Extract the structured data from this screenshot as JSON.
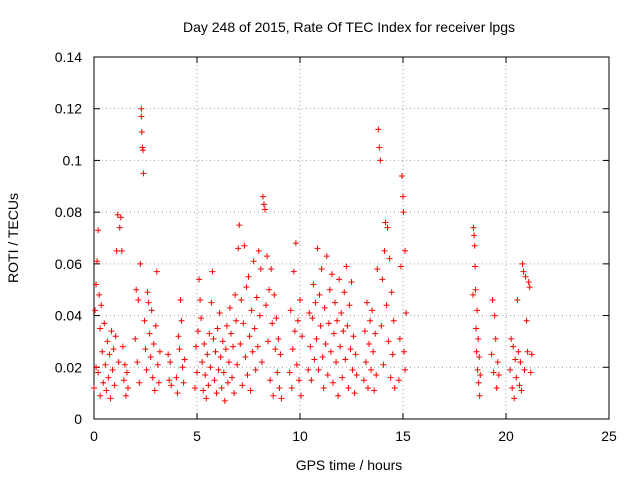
{
  "chart_data": {
    "type": "scatter",
    "title": "Day 248 of 2015, Rate Of TEC Index for receiver lpgs",
    "xlabel": "GPS time / hours",
    "ylabel": "ROTI / TECUs",
    "xlim": [
      0,
      25
    ],
    "ylim": [
      0,
      0.14
    ],
    "xticks": [
      0,
      5,
      10,
      15,
      20,
      25
    ],
    "xtick_labels": [
      "0",
      "5",
      "10",
      "15",
      "20",
      "25"
    ],
    "yticks": [
      0,
      0.02,
      0.04,
      0.06,
      0.08,
      0.1,
      0.12,
      0.14
    ],
    "ytick_labels": [
      "0",
      "0.02",
      "0.04",
      "0.06",
      "0.08",
      "0.1",
      "0.12",
      "0.14"
    ],
    "grid": true,
    "marker": "+",
    "series_color": "#ff0000",
    "series": [
      {
        "name": "ROTI",
        "points": [
          [
            0.0,
            0.012
          ],
          [
            0.05,
            0.042
          ],
          [
            0.1,
            0.02
          ],
          [
            0.1,
            0.052
          ],
          [
            0.15,
            0.061
          ],
          [
            0.2,
            0.018
          ],
          [
            0.2,
            0.073
          ],
          [
            0.25,
            0.048
          ],
          [
            0.3,
            0.035
          ],
          [
            0.3,
            0.009
          ],
          [
            0.35,
            0.044
          ],
          [
            0.4,
            0.026
          ],
          [
            0.45,
            0.014
          ],
          [
            0.5,
            0.037
          ],
          [
            0.55,
            0.021
          ],
          [
            0.6,
            0.011
          ],
          [
            0.65,
            0.03
          ],
          [
            0.7,
            0.016
          ],
          [
            0.75,
            0.025
          ],
          [
            0.8,
            0.008
          ],
          [
            0.85,
            0.034
          ],
          [
            0.9,
            0.019
          ],
          [
            0.95,
            0.027
          ],
          [
            1.0,
            0.013
          ],
          [
            1.05,
            0.032
          ],
          [
            1.1,
            0.065
          ],
          [
            1.15,
            0.079
          ],
          [
            1.2,
            0.022
          ],
          [
            1.25,
            0.074
          ],
          [
            1.3,
            0.078
          ],
          [
            1.35,
            0.065
          ],
          [
            1.4,
            0.028
          ],
          [
            1.45,
            0.015
          ],
          [
            1.5,
            0.021
          ],
          [
            1.55,
            0.009
          ],
          [
            1.6,
            0.018
          ],
          [
            1.65,
            0.012
          ],
          [
            2.0,
            0.031
          ],
          [
            2.05,
            0.05
          ],
          [
            2.1,
            0.022
          ],
          [
            2.15,
            0.046
          ],
          [
            2.2,
            0.014
          ],
          [
            2.25,
            0.06
          ],
          [
            2.3,
            0.12
          ],
          [
            2.3,
            0.117
          ],
          [
            2.32,
            0.111
          ],
          [
            2.35,
            0.105
          ],
          [
            2.38,
            0.104
          ],
          [
            2.4,
            0.095
          ],
          [
            2.45,
            0.038
          ],
          [
            2.5,
            0.027
          ],
          [
            2.55,
            0.019
          ],
          [
            2.6,
            0.049
          ],
          [
            2.65,
            0.045
          ],
          [
            2.7,
            0.033
          ],
          [
            2.75,
            0.024
          ],
          [
            2.8,
            0.042
          ],
          [
            2.85,
            0.016
          ],
          [
            2.9,
            0.029
          ],
          [
            2.95,
            0.011
          ],
          [
            3.0,
            0.036
          ],
          [
            3.05,
            0.057
          ],
          [
            3.1,
            0.021
          ],
          [
            3.15,
            0.014
          ],
          [
            3.2,
            0.026
          ],
          [
            3.6,
            0.025
          ],
          [
            3.65,
            0.015
          ],
          [
            3.7,
            0.022
          ],
          [
            3.75,
            0.013
          ],
          [
            4.0,
            0.016
          ],
          [
            4.05,
            0.01
          ],
          [
            4.1,
            0.032
          ],
          [
            4.15,
            0.027
          ],
          [
            4.2,
            0.046
          ],
          [
            4.25,
            0.038
          ],
          [
            4.3,
            0.02
          ],
          [
            4.35,
            0.014
          ],
          [
            4.4,
            0.023
          ],
          [
            4.9,
            0.012
          ],
          [
            4.95,
            0.028
          ],
          [
            5.0,
            0.018
          ],
          [
            5.05,
            0.034
          ],
          [
            5.1,
            0.054
          ],
          [
            5.15,
            0.046
          ],
          [
            5.2,
            0.039
          ],
          [
            5.25,
            0.022
          ],
          [
            5.3,
            0.011
          ],
          [
            5.35,
            0.029
          ],
          [
            5.4,
            0.017
          ],
          [
            5.45,
            0.008
          ],
          [
            5.5,
            0.025
          ],
          [
            5.55,
            0.013
          ],
          [
            5.6,
            0.033
          ],
          [
            5.65,
            0.02
          ],
          [
            5.7,
            0.045
          ],
          [
            5.75,
            0.057
          ],
          [
            5.8,
            0.031
          ],
          [
            5.85,
            0.015
          ],
          [
            5.9,
            0.026
          ],
          [
            5.95,
            0.01
          ],
          [
            6.0,
            0.035
          ],
          [
            6.05,
            0.019
          ],
          [
            6.1,
            0.041
          ],
          [
            6.15,
            0.024
          ],
          [
            6.2,
            0.012
          ],
          [
            6.25,
            0.03
          ],
          [
            6.3,
            0.018
          ],
          [
            6.35,
            0.007
          ],
          [
            6.4,
            0.027
          ],
          [
            6.45,
            0.036
          ],
          [
            6.5,
            0.014
          ],
          [
            6.55,
            0.022
          ],
          [
            6.6,
            0.043
          ],
          [
            6.65,
            0.033
          ],
          [
            6.7,
            0.016
          ],
          [
            6.75,
            0.028
          ],
          [
            6.8,
            0.01
          ],
          [
            6.85,
            0.048
          ],
          [
            6.9,
            0.038
          ],
          [
            6.95,
            0.021
          ],
          [
            7.0,
            0.066
          ],
          [
            7.05,
            0.075
          ],
          [
            7.1,
            0.029
          ],
          [
            7.15,
            0.046
          ],
          [
            7.2,
            0.013
          ],
          [
            7.25,
            0.037
          ],
          [
            7.3,
            0.067
          ],
          [
            7.35,
            0.024
          ],
          [
            7.4,
            0.051
          ],
          [
            7.45,
            0.017
          ],
          [
            7.5,
            0.055
          ],
          [
            7.55,
            0.032
          ],
          [
            7.6,
            0.011
          ],
          [
            7.65,
            0.042
          ],
          [
            7.7,
            0.026
          ],
          [
            7.75,
            0.061
          ],
          [
            7.8,
            0.035
          ],
          [
            7.85,
            0.019
          ],
          [
            7.9,
            0.047
          ],
          [
            7.95,
            0.028
          ],
          [
            8.0,
            0.065
          ],
          [
            8.05,
            0.04
          ],
          [
            8.1,
            0.058
          ],
          [
            8.15,
            0.022
          ],
          [
            8.2,
            0.086
          ],
          [
            8.25,
            0.083
          ],
          [
            8.3,
            0.081
          ],
          [
            8.35,
            0.044
          ],
          [
            8.4,
            0.063
          ],
          [
            8.45,
            0.03
          ],
          [
            8.5,
            0.05
          ],
          [
            8.55,
            0.015
          ],
          [
            8.6,
            0.058
          ],
          [
            8.65,
            0.037
          ],
          [
            8.7,
            0.009
          ],
          [
            8.75,
            0.048
          ],
          [
            8.8,
            0.027
          ],
          [
            8.85,
            0.039
          ],
          [
            8.9,
            0.018
          ],
          [
            8.95,
            0.031
          ],
          [
            9.0,
            0.012
          ],
          [
            9.05,
            0.025
          ],
          [
            9.1,
            0.008
          ],
          [
            9.5,
            0.018
          ],
          [
            9.55,
            0.042
          ],
          [
            9.6,
            0.012
          ],
          [
            9.65,
            0.027
          ],
          [
            9.7,
            0.057
          ],
          [
            9.75,
            0.034
          ],
          [
            9.8,
            0.068
          ],
          [
            9.85,
            0.021
          ],
          [
            9.9,
            0.038
          ],
          [
            9.95,
            0.015
          ],
          [
            10.0,
            0.046
          ],
          [
            10.05,
            0.009
          ],
          [
            10.1,
            0.032
          ],
          [
            10.4,
            0.019
          ],
          [
            10.45,
            0.041
          ],
          [
            10.5,
            0.028
          ],
          [
            10.55,
            0.015
          ],
          [
            10.6,
            0.039
          ],
          [
            10.65,
            0.052
          ],
          [
            10.7,
            0.023
          ],
          [
            10.75,
            0.045
          ],
          [
            10.8,
            0.031
          ],
          [
            10.85,
            0.066
          ],
          [
            10.9,
            0.019
          ],
          [
            10.95,
            0.048
          ],
          [
            11.0,
            0.036
          ],
          [
            11.05,
            0.058
          ],
          [
            11.1,
            0.024
          ],
          [
            11.15,
            0.012
          ],
          [
            11.2,
            0.043
          ],
          [
            11.25,
            0.029
          ],
          [
            11.3,
            0.063
          ],
          [
            11.35,
            0.017
          ],
          [
            11.4,
            0.037
          ],
          [
            11.45,
            0.05
          ],
          [
            11.5,
            0.026
          ],
          [
            11.55,
            0.056
          ],
          [
            11.6,
            0.014
          ],
          [
            11.65,
            0.033
          ],
          [
            11.7,
            0.045
          ],
          [
            11.75,
            0.022
          ],
          [
            11.8,
            0.038
          ],
          [
            11.85,
            0.009
          ],
          [
            11.9,
            0.054
          ],
          [
            11.95,
            0.028
          ],
          [
            12.0,
            0.041
          ],
          [
            12.05,
            0.016
          ],
          [
            12.1,
            0.034
          ],
          [
            12.15,
            0.049
          ],
          [
            12.2,
            0.023
          ],
          [
            12.25,
            0.059
          ],
          [
            12.3,
            0.036
          ],
          [
            12.35,
            0.012
          ],
          [
            12.4,
            0.044
          ],
          [
            12.45,
            0.027
          ],
          [
            12.5,
            0.053
          ],
          [
            12.55,
            0.019
          ],
          [
            12.6,
            0.032
          ],
          [
            12.65,
            0.01
          ],
          [
            12.7,
            0.025
          ],
          [
            12.75,
            0.017
          ],
          [
            13.1,
            0.015
          ],
          [
            13.15,
            0.034
          ],
          [
            13.2,
            0.022
          ],
          [
            13.25,
            0.045
          ],
          [
            13.3,
            0.012
          ],
          [
            13.35,
            0.029
          ],
          [
            13.4,
            0.038
          ],
          [
            13.45,
            0.019
          ],
          [
            13.5,
            0.042
          ],
          [
            13.55,
            0.026
          ],
          [
            13.6,
            0.011
          ],
          [
            13.65,
            0.033
          ],
          [
            13.7,
            0.017
          ],
          [
            13.75,
            0.058
          ],
          [
            13.8,
            0.112
          ],
          [
            13.85,
            0.105
          ],
          [
            13.9,
            0.1
          ],
          [
            13.95,
            0.036
          ],
          [
            14.0,
            0.054
          ],
          [
            14.05,
            0.021
          ],
          [
            14.1,
            0.065
          ],
          [
            14.15,
            0.076
          ],
          [
            14.2,
            0.044
          ],
          [
            14.25,
            0.074
          ],
          [
            14.3,
            0.03
          ],
          [
            14.35,
            0.062
          ],
          [
            14.4,
            0.016
          ],
          [
            14.45,
            0.049
          ],
          [
            14.5,
            0.025
          ],
          [
            14.55,
            0.038
          ],
          [
            14.6,
            0.012
          ],
          [
            14.8,
            0.015
          ],
          [
            14.85,
            0.031
          ],
          [
            14.9,
            0.059
          ],
          [
            14.95,
            0.094
          ],
          [
            15.0,
            0.086
          ],
          [
            15.02,
            0.08
          ],
          [
            15.05,
            0.026
          ],
          [
            15.1,
            0.019
          ],
          [
            15.1,
            0.065
          ],
          [
            15.15,
            0.041
          ],
          [
            18.4,
            0.048
          ],
          [
            18.42,
            0.074
          ],
          [
            18.45,
            0.071
          ],
          [
            18.48,
            0.067
          ],
          [
            18.5,
            0.059
          ],
          [
            18.52,
            0.05
          ],
          [
            18.55,
            0.035
          ],
          [
            18.57,
            0.026
          ],
          [
            18.6,
            0.042
          ],
          [
            18.62,
            0.019
          ],
          [
            18.65,
            0.031
          ],
          [
            18.67,
            0.014
          ],
          [
            18.7,
            0.024
          ],
          [
            18.72,
            0.009
          ],
          [
            18.75,
            0.017
          ],
          [
            19.3,
            0.025
          ],
          [
            19.35,
            0.046
          ],
          [
            19.4,
            0.018
          ],
          [
            19.45,
            0.04
          ],
          [
            19.5,
            0.031
          ],
          [
            19.55,
            0.012
          ],
          [
            19.6,
            0.022
          ],
          [
            19.65,
            0.017
          ],
          [
            20.2,
            0.019
          ],
          [
            20.25,
            0.031
          ],
          [
            20.3,
            0.012
          ],
          [
            20.35,
            0.028
          ],
          [
            20.4,
            0.008
          ],
          [
            20.45,
            0.023
          ],
          [
            20.5,
            0.016
          ],
          [
            20.55,
            0.046
          ],
          [
            20.6,
            0.026
          ],
          [
            20.65,
            0.013
          ],
          [
            20.7,
            0.022
          ],
          [
            20.75,
            0.011
          ],
          [
            20.8,
            0.06
          ],
          [
            20.85,
            0.057
          ],
          [
            20.9,
            0.019
          ],
          [
            20.95,
            0.055
          ],
          [
            21.0,
            0.038
          ],
          [
            21.05,
            0.026
          ],
          [
            21.1,
            0.053
          ],
          [
            21.15,
            0.051
          ],
          [
            21.2,
            0.018
          ],
          [
            21.25,
            0.025
          ]
        ]
      }
    ]
  }
}
